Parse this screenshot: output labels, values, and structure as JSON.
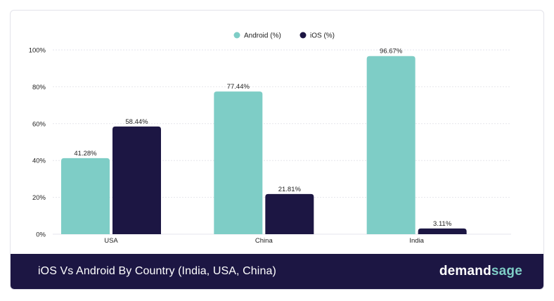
{
  "chart_data": {
    "type": "bar",
    "categories": [
      "USA",
      "China",
      "India"
    ],
    "series": [
      {
        "name": "Android (%)",
        "values": [
          41.28,
          77.44,
          96.67
        ],
        "labels": [
          "41.28%",
          "77.44%",
          "96.67%"
        ],
        "color": "#7ecdc6"
      },
      {
        "name": "iOS (%)",
        "values": [
          58.44,
          21.81,
          3.11
        ],
        "labels": [
          "58.44%",
          "21.81%",
          "3.11%"
        ],
        "color": "#1c1643"
      }
    ],
    "ylim": [
      0,
      100
    ],
    "yticks": [
      "0%",
      "20%",
      "40%",
      "60%",
      "80%",
      "100%"
    ],
    "ytick_values": [
      0,
      20,
      40,
      60,
      80,
      100
    ],
    "grid": true,
    "legend": "top-center"
  },
  "footer": {
    "title": "iOS Vs Android By Country (India, USA, China)",
    "brand_part1": "demand",
    "brand_part2": "sage"
  },
  "colors": {
    "android": "#7ecdc6",
    "ios": "#1c1643",
    "grid": "#e6e6ec",
    "text": "#222222"
  }
}
